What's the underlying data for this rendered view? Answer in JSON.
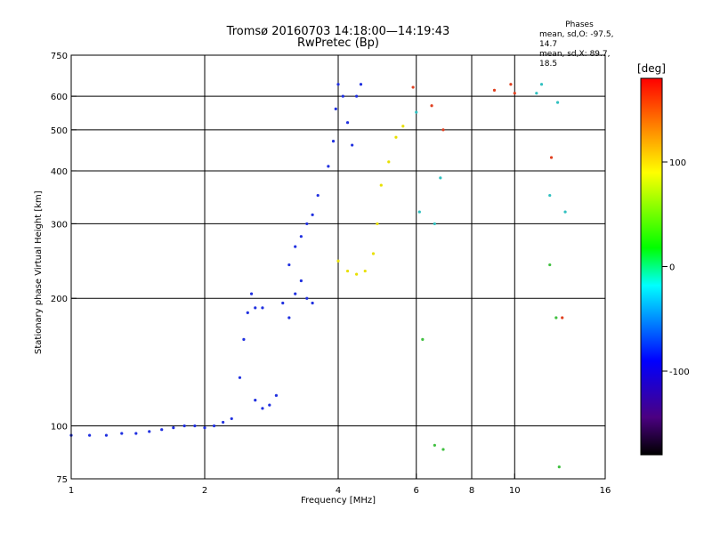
{
  "header": {
    "title_line1": "Tromsø 20160703 14:18:00—14:19:43",
    "title_line2": "RwPretec (Bp)"
  },
  "phases": {
    "heading": "Phases",
    "line1": "mean, sd,O: -97.5, 14.7",
    "line2": "mean, sd,X: 89.7, 18.5"
  },
  "colorbar": {
    "label": "[deg]",
    "ticks": [
      "100",
      "0",
      "-100"
    ],
    "range": [
      -180,
      180
    ],
    "colors": [
      "#000000",
      "#4b0082",
      "#0000ff",
      "#00ffff",
      "#00ff00",
      "#ffff00",
      "#ff0000"
    ]
  },
  "chart_data": {
    "type": "scatter",
    "xlabel": "Frequency [MHz]",
    "ylabel": "Stationary phase Virtual Height [km]",
    "x_scale": "log",
    "y_scale": "log",
    "xlim": [
      1,
      16
    ],
    "ylim": [
      75,
      750
    ],
    "x_ticks": [
      "1",
      "2",
      "4",
      "6",
      "8",
      "10",
      "16"
    ],
    "y_ticks": [
      "75",
      "100",
      "200",
      "300",
      "400",
      "500",
      "600",
      "750"
    ],
    "x_tick_values": [
      1,
      2,
      4,
      6,
      8,
      10,
      16
    ],
    "y_tick_values": [
      75,
      100,
      200,
      300,
      400,
      500,
      600,
      750
    ],
    "grid_x": [
      2,
      4,
      6,
      8,
      10
    ],
    "grid_y": [
      100,
      200,
      300,
      400,
      500,
      600
    ],
    "series": [
      {
        "color": "#2030e0",
        "points": [
          [
            1.0,
            95
          ],
          [
            1.1,
            95
          ],
          [
            1.2,
            95
          ],
          [
            1.3,
            96
          ],
          [
            1.4,
            96
          ],
          [
            1.5,
            97
          ],
          [
            1.6,
            98
          ],
          [
            1.7,
            99
          ],
          [
            1.8,
            100
          ],
          [
            1.9,
            100
          ],
          [
            2.0,
            99
          ],
          [
            2.1,
            100
          ],
          [
            2.2,
            102
          ],
          [
            2.3,
            104
          ],
          [
            2.4,
            130
          ],
          [
            2.45,
            160
          ],
          [
            2.5,
            185
          ],
          [
            2.55,
            205
          ],
          [
            2.6,
            190
          ],
          [
            2.7,
            190
          ],
          [
            2.6,
            115
          ],
          [
            2.7,
            110
          ],
          [
            2.8,
            112
          ],
          [
            2.9,
            118
          ],
          [
            3.0,
            195
          ],
          [
            3.1,
            180
          ],
          [
            3.2,
            205
          ],
          [
            3.3,
            220
          ],
          [
            3.4,
            200
          ],
          [
            3.5,
            195
          ],
          [
            3.1,
            240
          ],
          [
            3.2,
            265
          ],
          [
            3.3,
            280
          ],
          [
            3.4,
            300
          ],
          [
            3.5,
            315
          ],
          [
            3.6,
            350
          ],
          [
            3.8,
            410
          ],
          [
            3.9,
            470
          ],
          [
            3.95,
            560
          ],
          [
            4.0,
            640
          ],
          [
            4.1,
            600
          ],
          [
            4.2,
            520
          ],
          [
            4.3,
            460
          ],
          [
            4.4,
            600
          ],
          [
            4.5,
            640
          ]
        ]
      },
      {
        "color": "#e8e000",
        "points": [
          [
            4.0,
            245
          ],
          [
            4.2,
            232
          ],
          [
            4.4,
            228
          ],
          [
            4.6,
            232
          ],
          [
            4.8,
            255
          ],
          [
            4.9,
            300
          ],
          [
            5.0,
            370
          ],
          [
            5.2,
            420
          ],
          [
            5.4,
            480
          ],
          [
            5.6,
            510
          ]
        ]
      },
      {
        "color": "#30c0c0",
        "points": [
          [
            6.0,
            550
          ],
          [
            6.1,
            320
          ],
          [
            6.6,
            300
          ],
          [
            6.8,
            385
          ],
          [
            11.2,
            610
          ],
          [
            11.5,
            640
          ],
          [
            12.0,
            350
          ],
          [
            12.5,
            580
          ],
          [
            13.0,
            320
          ]
        ]
      },
      {
        "color": "#e04020",
        "points": [
          [
            5.9,
            630
          ],
          [
            6.5,
            570
          ],
          [
            6.9,
            500
          ],
          [
            9.0,
            620
          ],
          [
            9.8,
            640
          ],
          [
            10.0,
            610
          ],
          [
            12.1,
            430
          ],
          [
            12.8,
            180
          ]
        ]
      },
      {
        "color": "#40c040",
        "points": [
          [
            6.2,
            160
          ],
          [
            6.6,
            90
          ],
          [
            6.9,
            88
          ],
          [
            12.0,
            240
          ],
          [
            12.4,
            180
          ],
          [
            12.6,
            80
          ]
        ]
      }
    ]
  }
}
